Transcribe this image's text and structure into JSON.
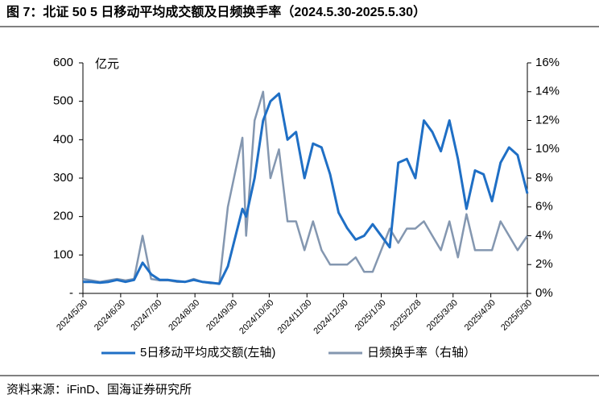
{
  "chart_data": {
    "type": "line",
    "title": "图 7：北证 50 5 日移动平均成交额及日频换手率（2024.5.30-2025.5.30）",
    "y_unit": "亿元",
    "source": "资料来源：iFinD、国海证券研究所",
    "x": [
      "2024/5/30",
      "2024/6/6",
      "2024/6/13",
      "2024/6/20",
      "2024/6/27",
      "2024/7/4",
      "2024/7/11",
      "2024/7/18",
      "2024/7/25",
      "2024/8/1",
      "2024/8/8",
      "2024/8/15",
      "2024/8/22",
      "2024/8/29",
      "2024/9/5",
      "2024/9/12",
      "2024/9/19",
      "2024/9/26",
      "2024/10/8",
      "2024/10/11",
      "2024/10/18",
      "2024/10/25",
      "2024/10/31",
      "2024/11/7",
      "2024/11/14",
      "2024/11/21",
      "2024/11/28",
      "2024/12/5",
      "2024/12/12",
      "2024/12/19",
      "2024/12/26",
      "2025/1/2",
      "2025/1/9",
      "2025/1/16",
      "2025/1/23",
      "2025/2/6",
      "2025/2/13",
      "2025/2/20",
      "2025/2/27",
      "2025/3/6",
      "2025/3/13",
      "2025/3/20",
      "2025/3/27",
      "2025/4/3",
      "2025/4/10",
      "2025/4/17",
      "2025/4/24",
      "2025/5/1",
      "2025/5/8",
      "2025/5/15",
      "2025/5/22",
      "2025/5/30"
    ],
    "xlim": [
      "2024/5/30",
      "2025/5/30"
    ],
    "xticks": [
      "2024/5/30",
      "2024/6/30",
      "2024/7/30",
      "2024/8/30",
      "2024/9/30",
      "2024/10/30",
      "2024/11/30",
      "2024/12/30",
      "2025/1/30",
      "2025/2/28",
      "2025/3/30",
      "2025/4/30",
      "2025/5/30"
    ],
    "ylim": [
      0,
      600
    ],
    "yticks": [
      {
        "value": 0,
        "label": "-"
      },
      100,
      200,
      300,
      400,
      500,
      600
    ],
    "y2lim": [
      0,
      16
    ],
    "y2ticks": [
      {
        "value": 0,
        "label": "0%"
      },
      {
        "value": 2,
        "label": "2%"
      },
      {
        "value": 4,
        "label": "4%"
      },
      {
        "value": 6,
        "label": "6%"
      },
      {
        "value": 8,
        "label": "8%"
      },
      {
        "value": 10,
        "label": "10%"
      },
      {
        "value": 12,
        "label": "12%"
      },
      {
        "value": 14,
        "label": "14%"
      },
      {
        "value": 16,
        "label": "16%"
      }
    ],
    "series": [
      {
        "name": "5日移动平均成交额(左轴)",
        "color": "#1f6fc5",
        "axis": "y",
        "values": [
          30,
          30,
          28,
          30,
          35,
          30,
          35,
          80,
          50,
          35,
          35,
          32,
          30,
          35,
          30,
          28,
          25,
          70,
          220,
          200,
          300,
          450,
          500,
          520,
          400,
          420,
          300,
          390,
          380,
          310,
          210,
          170,
          140,
          150,
          180,
          120,
          340,
          350,
          300,
          450,
          420,
          370,
          450,
          350,
          220,
          320,
          310,
          240,
          340,
          380,
          360,
          260
        ]
      },
      {
        "name": "日频换手率（右轴）",
        "color": "#8497b0",
        "axis": "y2",
        "values": [
          1,
          0.9,
          0.8,
          0.9,
          1,
          0.9,
          1,
          4,
          1,
          0.9,
          0.9,
          0.8,
          0.8,
          1,
          0.8,
          0.7,
          0.7,
          6,
          10.8,
          4,
          12,
          14,
          8,
          10,
          5,
          5,
          3,
          5,
          3,
          2,
          2,
          2,
          2.5,
          1.5,
          1.5,
          4.5,
          3.5,
          4.5,
          4.5,
          5,
          4,
          3,
          5,
          2.5,
          5.5,
          3,
          3,
          3,
          5,
          4,
          3,
          4
        ]
      }
    ]
  }
}
